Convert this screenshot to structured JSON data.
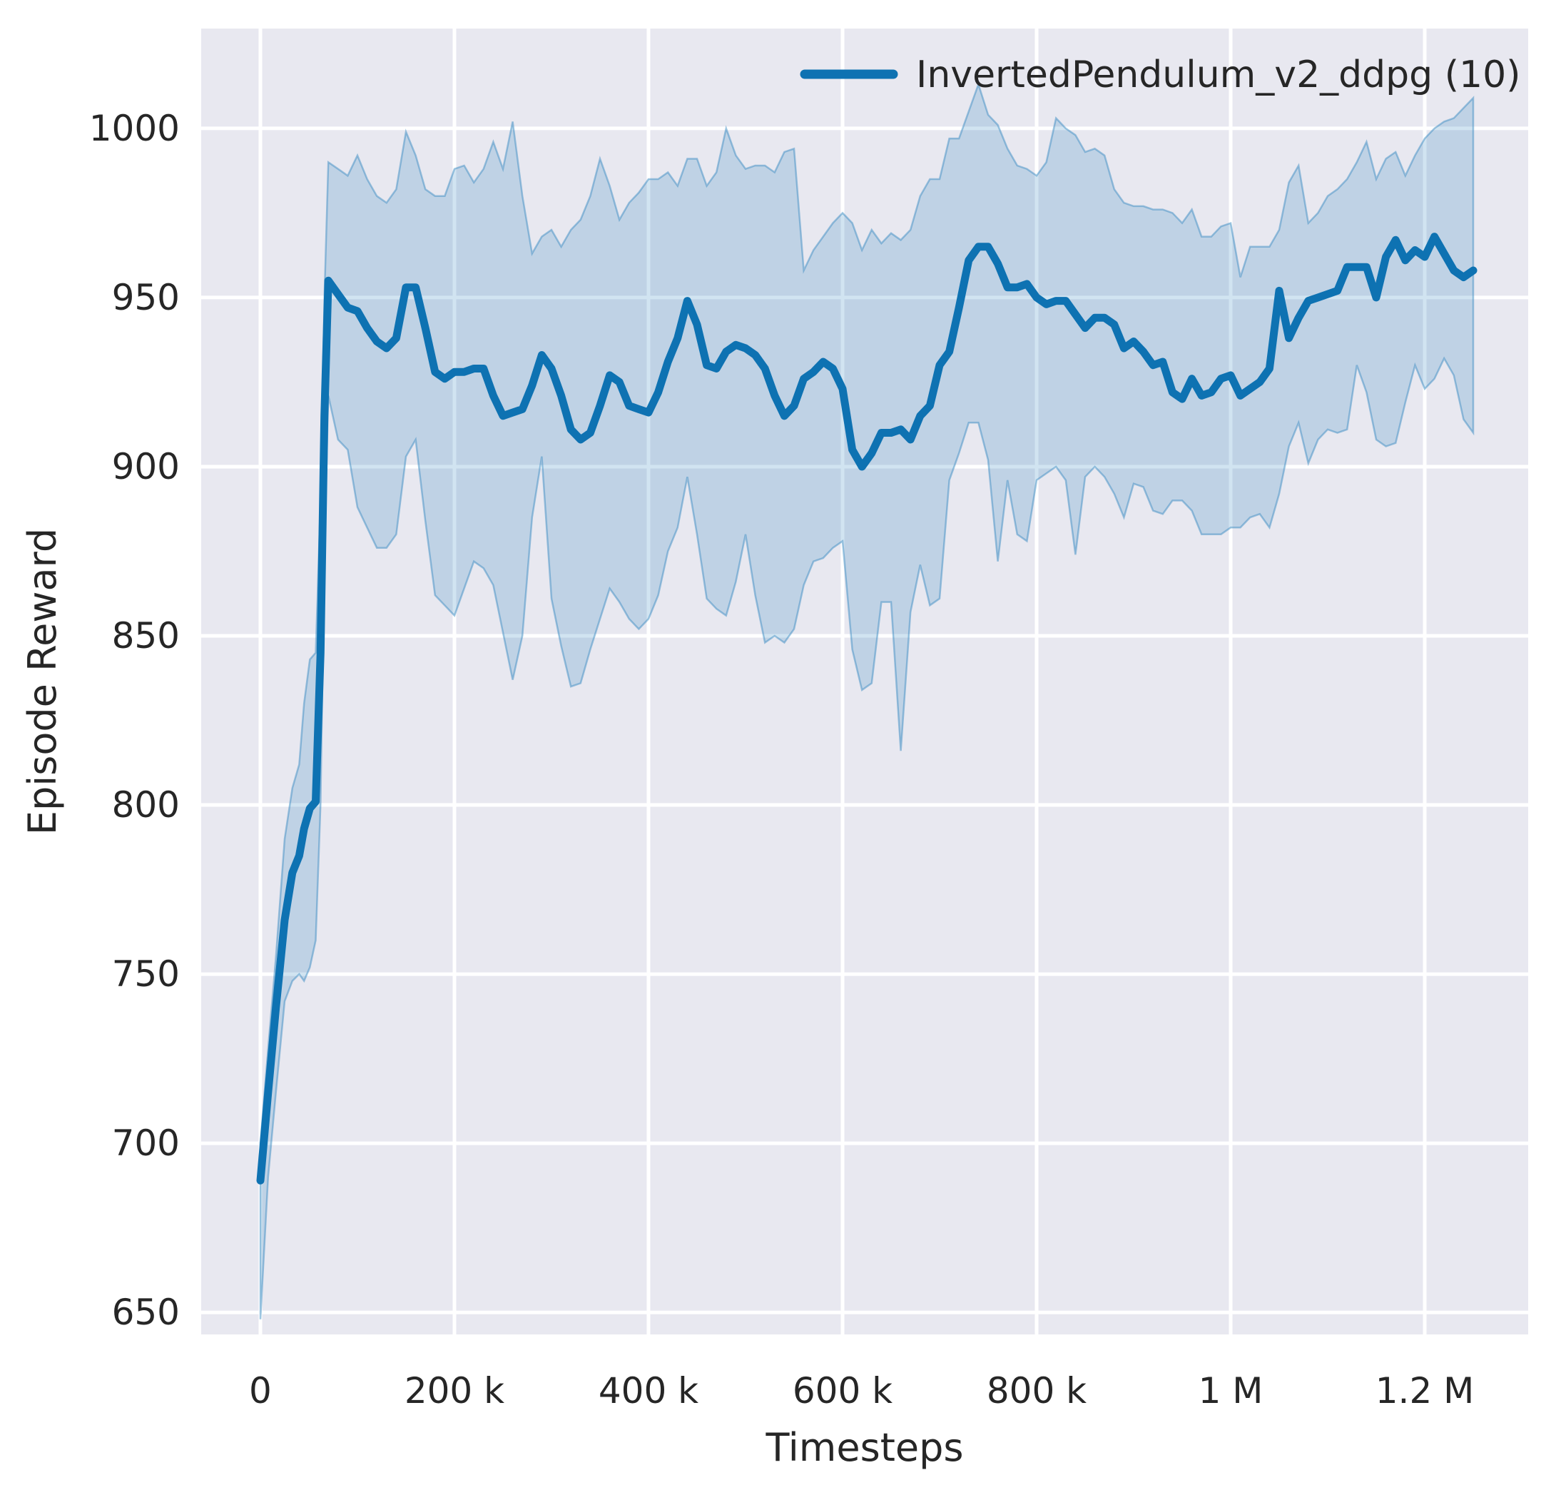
{
  "chart_data": {
    "type": "line",
    "title": "",
    "xlabel": "Timesteps",
    "ylabel": "Episode Reward",
    "grid": true,
    "legend": {
      "position": "upper right",
      "entries": [
        {
          "label": "InvertedPendulum_v2_ddpg (10)",
          "color": "#0e72b2"
        }
      ]
    },
    "style": {
      "figure_bg": "#ffffff",
      "plot_bg": "#e8e8f0",
      "grid_color": "#ffffff",
      "line_color": "#0e72b2",
      "band_color": "#2f86bf",
      "band_opacity": 0.22,
      "band_edge_opacity": 0.45,
      "tick_color": "#262626",
      "label_color": "#262626"
    },
    "xlim": [
      -61000,
      1306600
    ],
    "ylim": [
      643.5,
      1029.5
    ],
    "xticks": {
      "values": [
        0,
        200000,
        400000,
        600000,
        800000,
        1000000,
        1200000
      ],
      "labels": [
        "0",
        "200 k",
        "400 k",
        "600 k",
        "800 k",
        "1 M",
        "1.2 M"
      ]
    },
    "yticks": {
      "values": [
        650,
        700,
        750,
        800,
        850,
        900,
        950,
        1000
      ],
      "labels": [
        "650",
        "700",
        "750",
        "800",
        "850",
        "900",
        "950",
        "1000"
      ]
    },
    "x": [
      0,
      8000,
      16000,
      25000,
      33000,
      40000,
      45000,
      51000,
      57000,
      62000,
      66000,
      70000,
      80000,
      90000,
      100000,
      110000,
      120000,
      130000,
      140000,
      150000,
      160000,
      170000,
      180000,
      190000,
      200000,
      210000,
      220000,
      230000,
      240000,
      250000,
      260000,
      270000,
      280000,
      290000,
      300000,
      310000,
      320000,
      330000,
      340000,
      350000,
      360000,
      370000,
      380000,
      390000,
      400000,
      410000,
      420000,
      430000,
      440000,
      450000,
      460000,
      470000,
      480000,
      490000,
      500000,
      510000,
      520000,
      530000,
      540000,
      550000,
      560000,
      570000,
      580000,
      590000,
      600000,
      610000,
      620000,
      630000,
      640000,
      650000,
      660000,
      670000,
      680000,
      690000,
      700000,
      710000,
      720000,
      730000,
      740000,
      750000,
      760000,
      770000,
      780000,
      790000,
      800000,
      810000,
      820000,
      830000,
      840000,
      850000,
      860000,
      870000,
      880000,
      890000,
      900000,
      910000,
      920000,
      930000,
      940000,
      950000,
      960000,
      970000,
      980000,
      990000,
      1000000,
      1010000,
      1020000,
      1030000,
      1040000,
      1050000,
      1060000,
      1070000,
      1080000,
      1090000,
      1100000,
      1110000,
      1120000,
      1130000,
      1140000,
      1150000,
      1160000,
      1170000,
      1180000,
      1190000,
      1200000,
      1210000,
      1220000,
      1230000,
      1240000,
      1250000
    ],
    "series": [
      {
        "name": "mean",
        "values": [
          689,
          715,
          740,
          766,
          780,
          785,
          793,
          799,
          801,
          845,
          915,
          955,
          951,
          947,
          946,
          941,
          937,
          935,
          938,
          953,
          953,
          941,
          928,
          926,
          928,
          928,
          929,
          929,
          921,
          915,
          916,
          917,
          924,
          933,
          929,
          921,
          911,
          908,
          910,
          918,
          927,
          925,
          918,
          917,
          916,
          922,
          931,
          938,
          949,
          942,
          930,
          929,
          934,
          936,
          935,
          933,
          929,
          921,
          915,
          918,
          926,
          928,
          931,
          929,
          923,
          905,
          900,
          904,
          910,
          910,
          911,
          908,
          915,
          918,
          930,
          934,
          947,
          961,
          965,
          965,
          960,
          953,
          953,
          954,
          950,
          948,
          949,
          949,
          945,
          941,
          944,
          944,
          942,
          935,
          937,
          934,
          930,
          931,
          922,
          920,
          926,
          921,
          922,
          926,
          927,
          921,
          923,
          925,
          929,
          952,
          938,
          944,
          949,
          950,
          951,
          952,
          959,
          959,
          959,
          950,
          962,
          967,
          961,
          964,
          962,
          968,
          963,
          958,
          956,
          958
        ]
      },
      {
        "name": "upper band",
        "values": [
          700,
          728,
          755,
          790,
          805,
          812,
          830,
          843,
          845,
          890,
          950,
          990,
          988,
          986,
          992,
          985,
          980,
          978,
          982,
          999,
          992,
          982,
          980,
          980,
          988,
          989,
          984,
          988,
          996,
          988,
          1002,
          980,
          963,
          968,
          970,
          965,
          970,
          973,
          980,
          991,
          983,
          973,
          978,
          981,
          985,
          985,
          987,
          983,
          991,
          991,
          983,
          987,
          1000,
          992,
          988,
          989,
          989,
          987,
          993,
          994,
          958,
          964,
          968,
          972,
          975,
          972,
          964,
          970,
          966,
          969,
          967,
          970,
          980,
          985,
          985,
          997,
          997,
          1005,
          1013,
          1004,
          1001,
          994,
          989,
          988,
          986,
          990,
          1003,
          1000,
          998,
          993,
          994,
          992,
          982,
          978,
          977,
          977,
          976,
          976,
          975,
          972,
          976,
          968,
          968,
          971,
          972,
          956,
          965,
          965,
          965,
          970,
          984,
          989,
          972,
          975,
          980,
          982,
          985,
          990,
          996,
          985,
          991,
          993,
          986,
          992,
          997,
          1000,
          1002,
          1003,
          1006,
          1009
        ]
      },
      {
        "name": "lower band",
        "values": [
          648,
          690,
          715,
          742,
          748,
          750,
          748,
          752,
          760,
          800,
          875,
          921,
          908,
          905,
          888,
          882,
          876,
          876,
          880,
          903,
          908,
          884,
          862,
          859,
          856,
          864,
          872,
          870,
          865,
          851,
          837,
          850,
          885,
          903,
          861,
          847,
          835,
          836,
          846,
          855,
          864,
          860,
          855,
          852,
          855,
          862,
          875,
          882,
          897,
          880,
          861,
          858,
          856,
          866,
          880,
          862,
          848,
          850,
          848,
          852,
          865,
          872,
          873,
          876,
          878,
          846,
          834,
          836,
          860,
          860,
          816,
          857,
          871,
          859,
          861,
          896,
          904,
          913,
          913,
          902,
          872,
          896,
          880,
          878,
          896,
          898,
          900,
          896,
          874,
          897,
          900,
          897,
          892,
          885,
          895,
          894,
          887,
          886,
          890,
          890,
          887,
          880,
          880,
          880,
          882,
          882,
          885,
          886,
          882,
          892,
          906,
          913,
          901,
          908,
          911,
          910,
          911,
          930,
          922,
          908,
          906,
          907,
          919,
          930,
          923,
          926,
          932,
          927,
          914,
          910
        ]
      }
    ]
  }
}
